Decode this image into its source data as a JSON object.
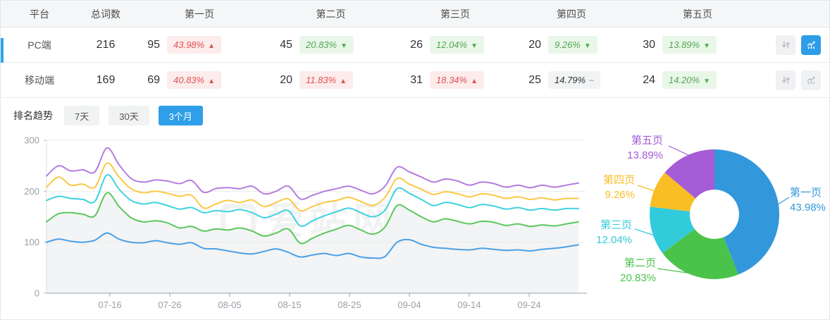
{
  "table": {
    "headers": [
      "平台",
      "总词数",
      "第一页",
      "第二页",
      "第三页",
      "第四页",
      "第五页"
    ],
    "rows": [
      {
        "platform": "PC端",
        "total": "216",
        "selected": true,
        "pages": [
          {
            "count": "95",
            "percent": "43.98%",
            "trend": "up"
          },
          {
            "count": "45",
            "percent": "20.83%",
            "trend": "down"
          },
          {
            "count": "26",
            "percent": "12.04%",
            "trend": "down"
          },
          {
            "count": "20",
            "percent": "9.26%",
            "trend": "down"
          },
          {
            "count": "30",
            "percent": "13.89%",
            "trend": "down"
          }
        ]
      },
      {
        "platform": "移动端",
        "total": "169",
        "selected": false,
        "pages": [
          {
            "count": "69",
            "percent": "40.83%",
            "trend": "up"
          },
          {
            "count": "20",
            "percent": "11.83%",
            "trend": "up"
          },
          {
            "count": "31",
            "percent": "18.34%",
            "trend": "up"
          },
          {
            "count": "25",
            "percent": "14.79%",
            "trend": "flat"
          },
          {
            "count": "24",
            "percent": "14.20%",
            "trend": "down"
          }
        ]
      }
    ]
  },
  "trend": {
    "label": "排名趋势",
    "tabs": [
      "7天",
      "30天",
      "3个月"
    ],
    "active_tab": 2
  },
  "watermark": "爱站网",
  "chart_data": [
    {
      "type": "line",
      "title": "排名趋势 3个月",
      "x_tick_labels": [
        "07-16",
        "07-26",
        "08-05",
        "08-15",
        "08-25",
        "09-04",
        "09-14",
        "09-24"
      ],
      "yticks": [
        0,
        100,
        200,
        300
      ],
      "ylim": [
        0,
        300
      ],
      "grid": true,
      "legend_position": "none",
      "series": [
        {
          "name": "第一页",
          "color": "#4aa0e6",
          "values": [
            100,
            106,
            102,
            100,
            104,
            118,
            106,
            100,
            99,
            103,
            99,
            96,
            99,
            88,
            87,
            83,
            79,
            77,
            82,
            87,
            80,
            71,
            75,
            78,
            74,
            78,
            71,
            69,
            72,
            100,
            105,
            96,
            90,
            88,
            86,
            85,
            88,
            86,
            84,
            85,
            83,
            86,
            88,
            91,
            95
          ]
        },
        {
          "name": "第二页",
          "color": "#5cc75c",
          "area_fill": "#f3f4f5",
          "values": [
            140,
            156,
            158,
            155,
            152,
            197,
            170,
            148,
            140,
            142,
            138,
            128,
            131,
            122,
            126,
            124,
            128,
            122,
            112,
            118,
            126,
            98,
            108,
            118,
            126,
            133,
            124,
            116,
            130,
            172,
            163,
            150,
            140,
            146,
            141,
            136,
            141,
            139,
            133,
            136,
            131,
            134,
            132,
            136,
            140
          ]
        },
        {
          "name": "第三页",
          "color": "#3fd2e0",
          "values": [
            182,
            190,
            186,
            184,
            180,
            232,
            204,
            182,
            175,
            178,
            172,
            165,
            168,
            158,
            162,
            160,
            164,
            158,
            148,
            155,
            162,
            132,
            142,
            152,
            160,
            167,
            158,
            150,
            163,
            205,
            196,
            184,
            172,
            178,
            174,
            168,
            174,
            171,
            165,
            168,
            163,
            166,
            163,
            166,
            166
          ]
        },
        {
          "name": "第四页",
          "color": "#f9c844",
          "values": [
            208,
            228,
            212,
            214,
            208,
            255,
            228,
            205,
            197,
            200,
            196,
            190,
            192,
            167,
            175,
            182,
            178,
            183,
            170,
            178,
            185,
            162,
            170,
            178,
            182,
            188,
            180,
            172,
            188,
            225,
            214,
            204,
            194,
            199,
            195,
            189,
            195,
            192,
            186,
            189,
            184,
            187,
            183,
            186,
            186
          ]
        },
        {
          "name": "第五页",
          "color": "#b57ce0",
          "values": [
            230,
            250,
            240,
            242,
            238,
            285,
            252,
            225,
            218,
            222,
            220,
            215,
            221,
            198,
            205,
            207,
            205,
            210,
            195,
            200,
            210,
            185,
            192,
            200,
            205,
            210,
            202,
            195,
            210,
            247,
            238,
            228,
            218,
            224,
            220,
            212,
            218,
            215,
            208,
            212,
            207,
            212,
            208,
            212,
            216
          ]
        }
      ]
    },
    {
      "type": "pie",
      "donut": true,
      "slices": [
        {
          "label": "第一页",
          "value": 43.98,
          "pct_text": "43.98%",
          "color": "#3398db",
          "label_pos": {
            "x": 1120,
            "y": 262,
            "w": 70,
            "align": "left"
          },
          "leader": [
            [
              1098,
              292
            ],
            [
              1119,
              279
            ]
          ]
        },
        {
          "label": "第二页",
          "value": 20.83,
          "pct_text": "20.83%",
          "color": "#4bc34b",
          "label_pos": {
            "x": 856,
            "y": 362,
            "w": 74,
            "align": "right"
          },
          "leader": [
            [
              981,
              387
            ],
            [
              932,
              380
            ]
          ]
        },
        {
          "label": "第三页",
          "value": 12.04,
          "pct_text": "12.04%",
          "color": "#32cbdc",
          "label_pos": {
            "x": 820,
            "y": 308,
            "w": 76,
            "align": "right"
          },
          "leader": [
            [
              931,
              334
            ],
            [
              900,
              324
            ]
          ]
        },
        {
          "label": "第四页",
          "value": 9.26,
          "pct_text": "9.26%",
          "color": "#f9be23",
          "label_pos": {
            "x": 826,
            "y": 244,
            "w": 74,
            "align": "right"
          },
          "leader": [
            [
              934,
              272
            ],
            [
              904,
              262
            ]
          ]
        },
        {
          "label": "第五页",
          "value": 13.89,
          "pct_text": "13.89%",
          "color": "#a55cd6",
          "label_pos": {
            "x": 866,
            "y": 188,
            "w": 74,
            "align": "right"
          },
          "leader": [
            [
              976,
              219
            ],
            [
              948,
              206
            ]
          ]
        }
      ]
    }
  ]
}
